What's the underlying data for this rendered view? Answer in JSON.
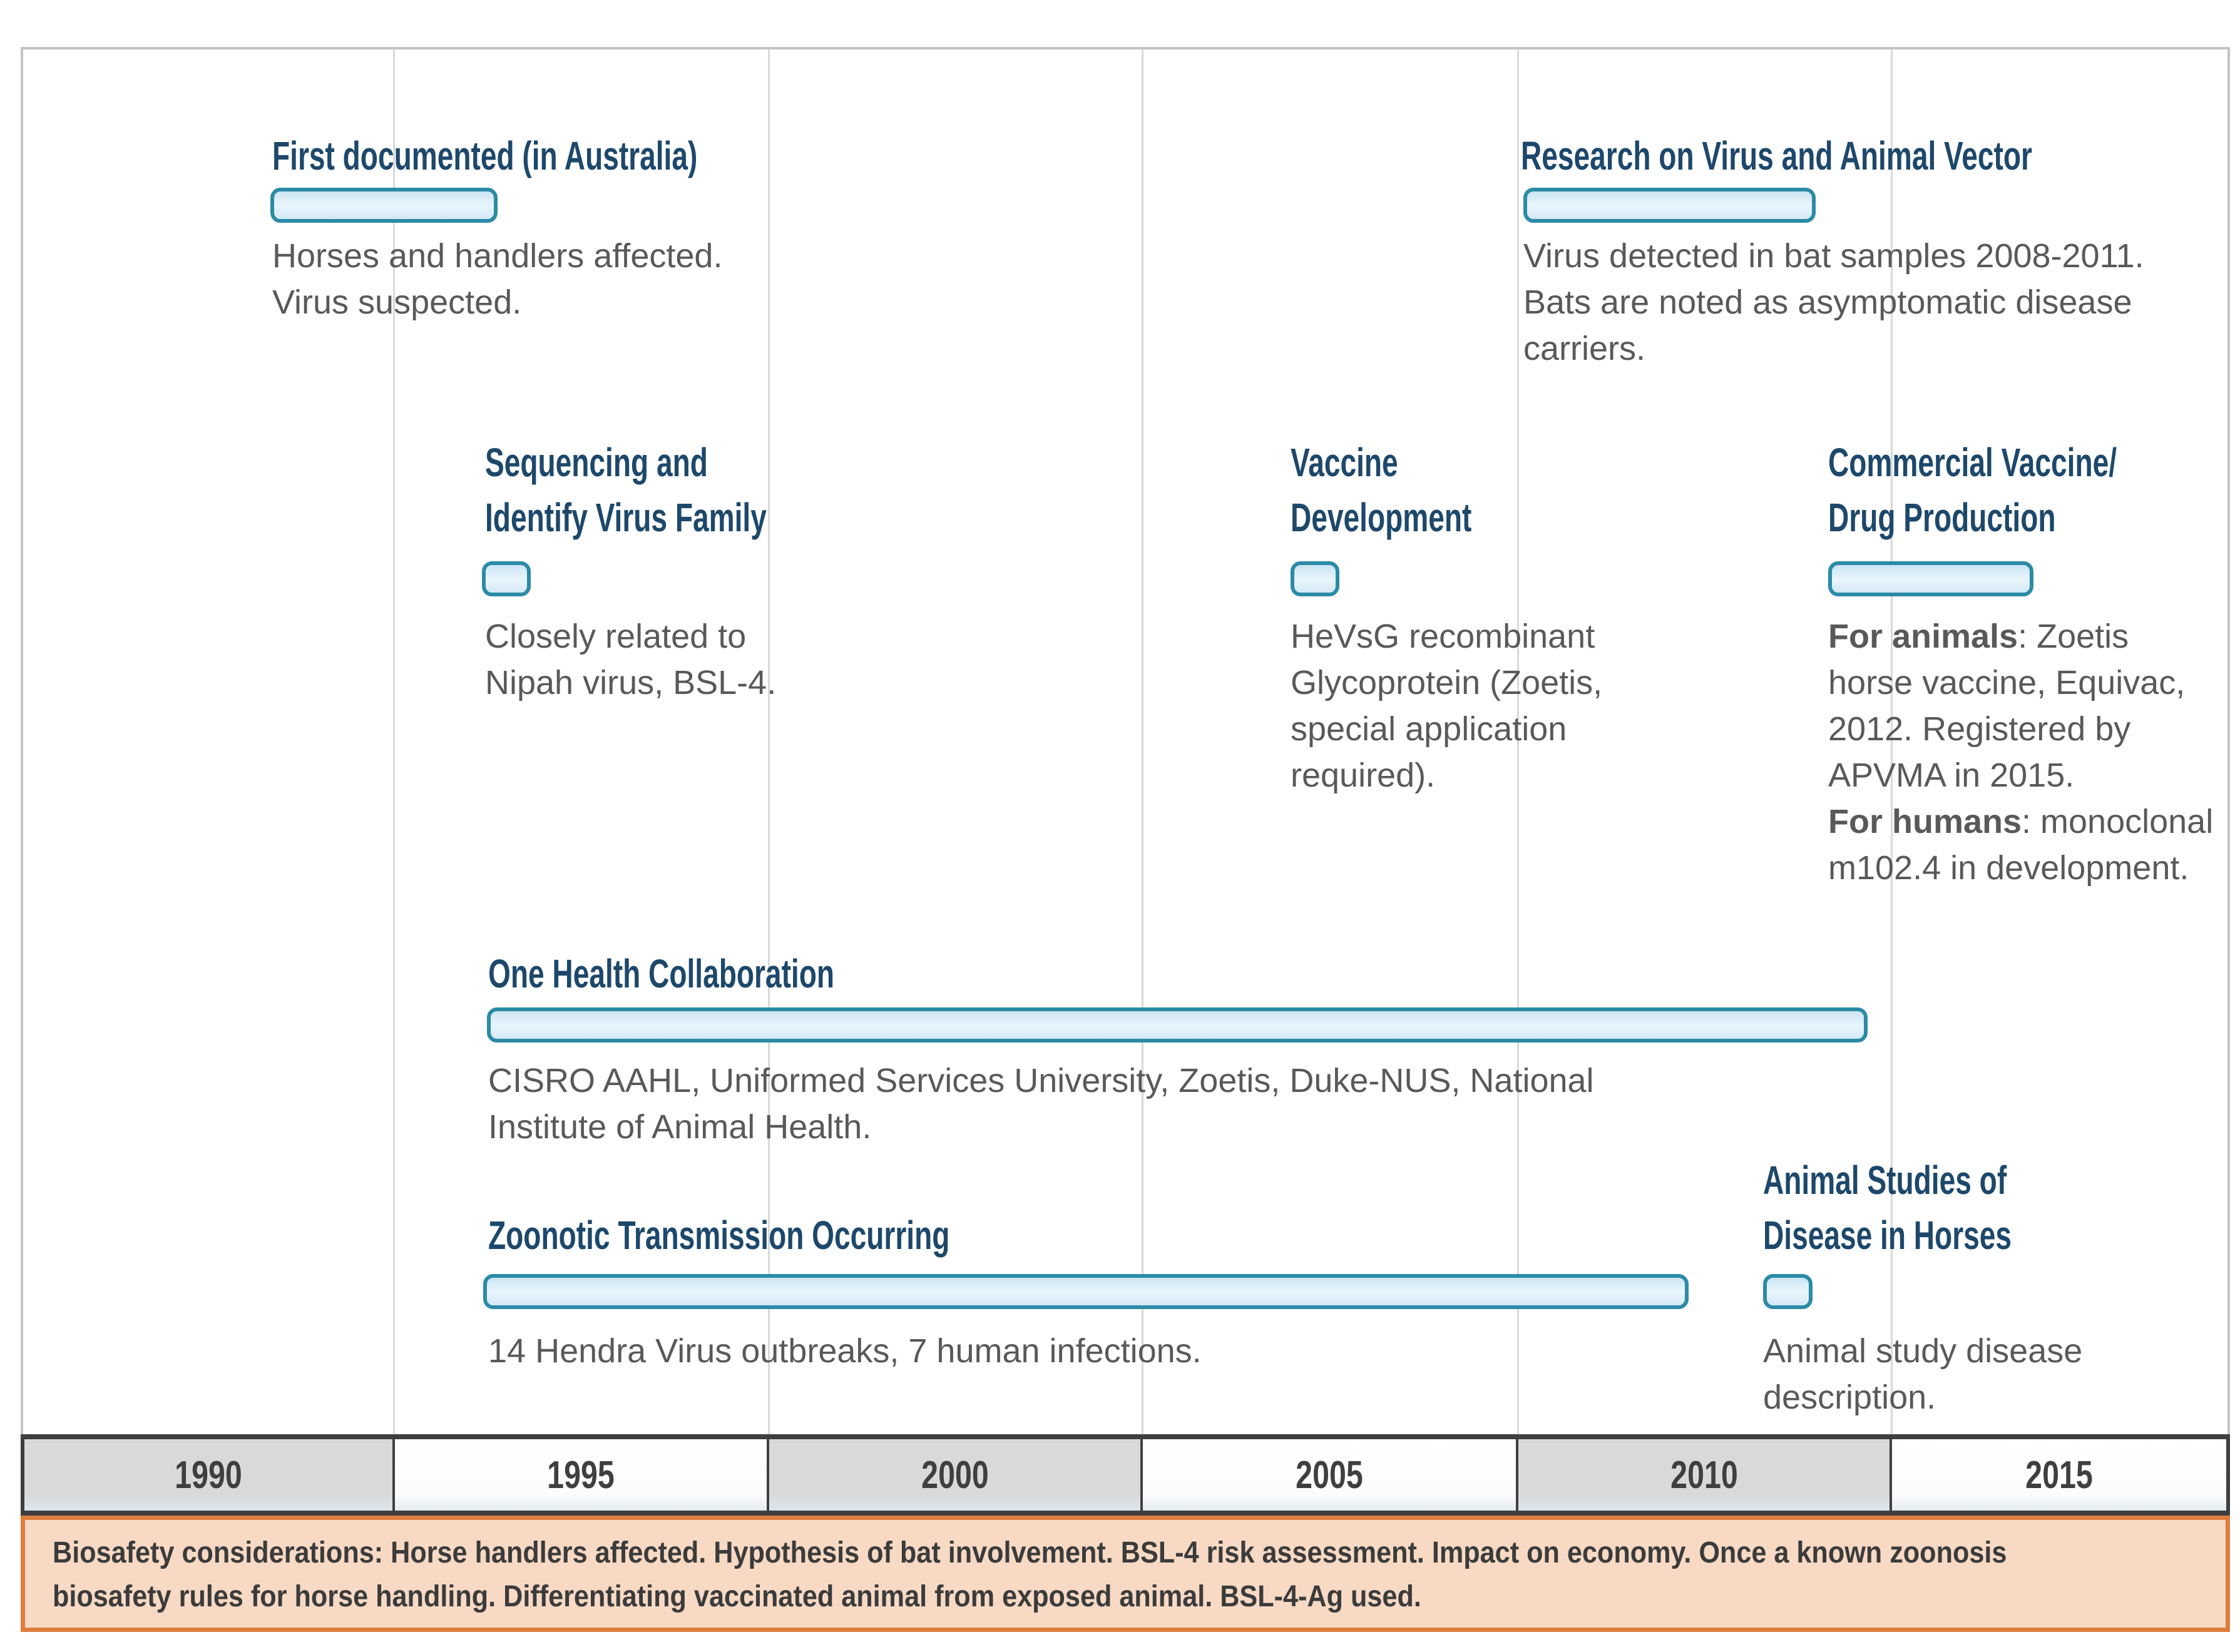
{
  "colors": {
    "title": "#1d486b",
    "desc": "#595959",
    "bar-border": "#2b8ba6",
    "bar-fill": "#d9ecf8",
    "gridline": "#d9d9d9",
    "chart-border": "#c3c3c3",
    "axis-dark": "#3f3f3f",
    "year-text": "#3f3f3f",
    "axis-gray-cell": "#d9d9d9",
    "axis-white-cell": "#ffffff",
    "footer-bg": "#f7d9c4",
    "footer-border": "#de7d3d",
    "footer-text": "#3b3b3b"
  },
  "events": {
    "first_documented": {
      "title_lines": [
        "First documented (in Australia)"
      ],
      "description_lines": [
        "Horses and handlers affected.",
        "Virus suspected."
      ]
    },
    "research": {
      "title_lines": [
        "Research on Virus and Animal Vector"
      ],
      "description_lines": [
        "Virus detected in bat samples 2008-2011.",
        "Bats are noted as asymptomatic disease",
        "carriers."
      ]
    },
    "sequencing": {
      "title_lines": [
        "Sequencing and",
        "Identify Virus Family"
      ],
      "description_lines": [
        "Closely related to",
        "Nipah virus, BSL-4."
      ]
    },
    "vaccine": {
      "title_lines": [
        "Vaccine",
        "Development"
      ],
      "description_lines": [
        "HeVsG recombinant",
        "Glycoprotein (Zoetis,",
        "special application",
        "required)."
      ]
    },
    "commercial": {
      "title_lines": [
        "Commercial Vaccine/",
        "Drug Production"
      ],
      "description_lines": [
        "**For animals**: Zoetis",
        "horse vaccine, Equivac,",
        "2012. Registered by",
        "APVMA in 2015.",
        "**For humans**: monoclonal",
        "m102.4 in development."
      ]
    },
    "one_health": {
      "title_lines": [
        "One Health Collaboration"
      ],
      "description_lines": [
        "CISRO AAHL, Uniformed Services University, Zoetis, Duke-NUS, National",
        "Institute of Animal Health."
      ]
    },
    "zoonotic": {
      "title_lines": [
        "Zoonotic Transmission Occurring"
      ],
      "description_lines": [
        "14 Hendra Virus outbreaks, 7 human infections."
      ]
    },
    "animal_studies": {
      "title_lines": [
        "Animal Studies of",
        "Disease in Horses"
      ],
      "description_lines": [
        "Animal study disease",
        "description."
      ]
    }
  },
  "axis": {
    "years": [
      "1990",
      "1995",
      "2000",
      "2005",
      "2010",
      "2015"
    ]
  },
  "footer": {
    "lines": [
      "Biosafety considerations: Horse handlers affected. Hypothesis of bat involvement. BSL-4 risk assessment. Impact on economy. Once a known zoonosis",
      "biosafety rules for horse handling. Differentiating vaccinated animal from exposed animal. BSL-4-Ag used."
    ]
  }
}
